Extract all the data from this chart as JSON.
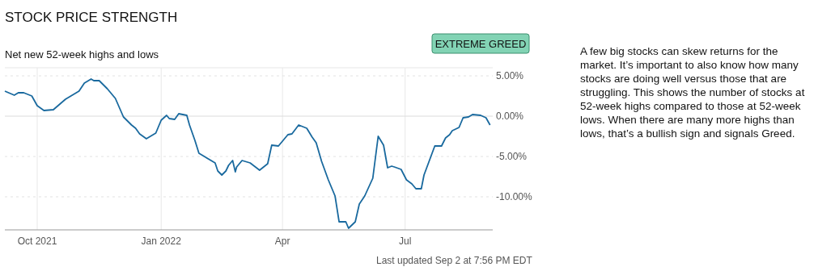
{
  "chart_data": {
    "type": "line",
    "title": "STOCK PRICE STRENGTH",
    "subtitle": "Net new 52-week highs and lows",
    "annotations": [
      "EXTREME GREED",
      "A few big stocks can skew returns for the market. It’s important to also know how many stocks are doing well versus those that are struggling. This shows the number of stocks at 52-week highs compared to those at 52-week lows. When there are many more highs than lows, that’s a bullish sign and signals Greed.",
      "Last updated Sep 2 at 7:56 PM EDT"
    ],
    "x": [
      "2021-09-07",
      "2021-09-14",
      "2021-09-17",
      "2021-09-21",
      "2021-09-27",
      "2021-10-01",
      "2021-10-06",
      "2021-10-13",
      "2021-10-22",
      "2021-11-01",
      "2021-11-05",
      "2021-11-10",
      "2021-11-12",
      "2021-11-16",
      "2021-11-22",
      "2021-11-28",
      "2021-12-04",
      "2021-12-10",
      "2021-12-13",
      "2021-12-16",
      "2021-12-21",
      "2021-12-28",
      "2022-01-01",
      "2022-01-05",
      "2022-01-07",
      "2022-01-11",
      "2022-01-14",
      "2022-01-20",
      "2022-01-22",
      "2022-01-26",
      "2022-01-29",
      "2022-02-03",
      "2022-02-10",
      "2022-02-12",
      "2022-02-15",
      "2022-02-18",
      "2022-02-20",
      "2022-02-23",
      "2022-02-25",
      "2022-02-26",
      "2022-03-02",
      "2022-03-08",
      "2022-03-15",
      "2022-03-21",
      "2022-03-24",
      "2022-03-29",
      "2022-04-05",
      "2022-04-08",
      "2022-04-13",
      "2022-04-19",
      "2022-04-23",
      "2022-04-26",
      "2022-04-30",
      "2022-05-05",
      "2022-05-10",
      "2022-05-13",
      "2022-05-18",
      "2022-05-20",
      "2022-05-25",
      "2022-05-28",
      "2022-06-01",
      "2022-06-07",
      "2022-06-11",
      "2022-06-15",
      "2022-06-18",
      "2022-06-21",
      "2022-06-23",
      "2022-06-28",
      "2022-07-02",
      "2022-07-06",
      "2022-07-09",
      "2022-07-13",
      "2022-07-15",
      "2022-07-21",
      "2022-07-23",
      "2022-07-28",
      "2022-07-31",
      "2022-08-03",
      "2022-08-05",
      "2022-08-10",
      "2022-08-13",
      "2022-08-17",
      "2022-08-20",
      "2022-08-26",
      "2022-08-30",
      "2022-09-02"
    ],
    "series": [
      {
        "color": "#19699e",
        "values": [
          3.1,
          2.6,
          2.9,
          2.9,
          2.5,
          1.3,
          0.7,
          0.8,
          2.1,
          3.1,
          4.1,
          4.6,
          4.4,
          4.4,
          3.4,
          2.2,
          -0.1,
          -1.1,
          -1.5,
          -2.2,
          -2.8,
          -2.1,
          -0.5,
          0.1,
          -0.3,
          -0.4,
          0.3,
          0.1,
          -1.1,
          -3.0,
          -4.6,
          -5.1,
          -5.8,
          -6.8,
          -7.3,
          -6.8,
          -6.1,
          -5.5,
          -6.9,
          -6.3,
          -5.5,
          -5.8,
          -6.7,
          -5.9,
          -3.6,
          -3.7,
          -2.3,
          -2.2,
          -1.1,
          -1.5,
          -2.6,
          -3.3,
          -5.6,
          -7.9,
          -9.9,
          -13.1,
          -13.1,
          -13.9,
          -13.1,
          -10.9,
          -9.9,
          -7.7,
          -2.5,
          -3.6,
          -6.4,
          -6.2,
          -6.3,
          -6.6,
          -7.9,
          -8.4,
          -9.0,
          -9.0,
          -7.3,
          -4.6,
          -3.7,
          -3.7,
          -2.7,
          -2.3,
          -1.8,
          -1.4,
          -0.2,
          -0.1,
          0.2,
          0.1,
          -0.2,
          -1.1
        ]
      }
    ],
    "xlim": [
      "2021-09-07",
      "2022-09-04"
    ],
    "ylim": [
      -14.1,
      6
    ],
    "xticks": [
      {
        "value": "2021-10-01",
        "label": "Oct 2021"
      },
      {
        "value": "2022-01-01",
        "label": "Jan 2022"
      },
      {
        "value": "2022-04-01",
        "label": "Apr"
      },
      {
        "value": "2022-07-01",
        "label": "Jul"
      }
    ],
    "yticks": [
      {
        "value": -10,
        "label": "-10.00%"
      },
      {
        "value": -5,
        "label": "-5.00%"
      },
      {
        "value": 0,
        "label": "0.00%"
      },
      {
        "value": 5,
        "label": "5.00%"
      }
    ],
    "grid": true,
    "marker": "none",
    "line_style": "solid"
  }
}
